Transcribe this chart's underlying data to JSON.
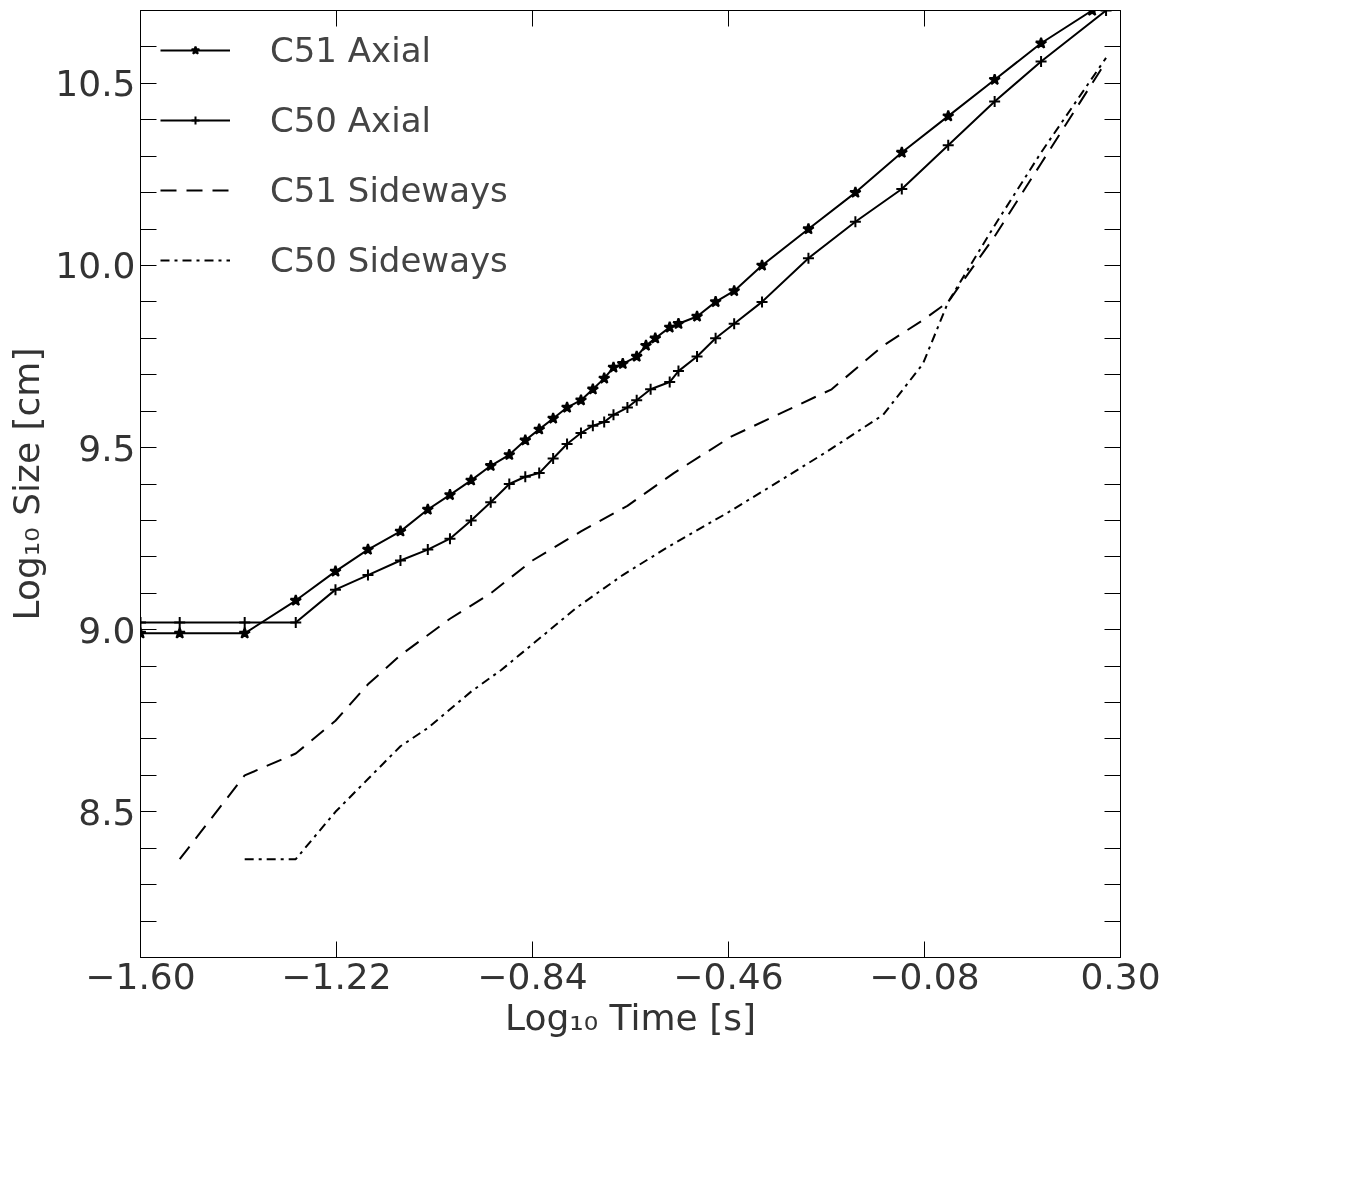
{
  "chart_data": {
    "type": "line",
    "xlabel": "Log₁₀ Time [s]",
    "ylabel": "Log₁₀ Size [cm]",
    "xlim": [
      -1.6,
      0.3
    ],
    "ylim": [
      8.1,
      10.7
    ],
    "xticks": [
      {
        "value": -1.6,
        "label": "−1.60"
      },
      {
        "value": -1.22,
        "label": "−1.22"
      },
      {
        "value": -0.84,
        "label": "−0.84"
      },
      {
        "value": -0.46,
        "label": "−0.46"
      },
      {
        "value": -0.08,
        "label": "−0.08"
      },
      {
        "value": 0.3,
        "label": "0.30"
      }
    ],
    "yticks": [
      {
        "value": 8.2,
        "label": null
      },
      {
        "value": 8.3,
        "label": null
      },
      {
        "value": 8.4,
        "label": null
      },
      8.5,
      {
        "value": 8.6,
        "label": null
      },
      {
        "value": 8.7,
        "label": null
      },
      {
        "value": 8.8,
        "label": null
      },
      {
        "value": 8.9,
        "label": null
      },
      {
        "value": 9.0,
        "label": "9.0"
      },
      {
        "value": 9.1,
        "label": null
      },
      {
        "value": 9.2,
        "label": null
      },
      {
        "value": 9.3,
        "label": null
      },
      {
        "value": 9.4,
        "label": null
      },
      9.5,
      {
        "value": 9.6,
        "label": null
      },
      {
        "value": 9.7,
        "label": null
      },
      {
        "value": 9.8,
        "label": null
      },
      {
        "value": 9.9,
        "label": null
      },
      {
        "value": 10.0,
        "label": "10.0"
      },
      {
        "value": 10.1,
        "label": null
      },
      {
        "value": 10.2,
        "label": null
      },
      {
        "value": 10.3,
        "label": null
      },
      {
        "value": 10.4,
        "label": null
      },
      10.5,
      {
        "value": 10.6,
        "label": null
      }
    ],
    "grid": false,
    "legend": "top left",
    "series": [
      {
        "name": "C51 Axial",
        "color": "#000000",
        "marker": "star",
        "line_style": "solid",
        "x": [
          -1.6,
          -1.524,
          -1.398,
          -1.299,
          -1.222,
          -1.159,
          -1.096,
          -1.043,
          -1.0,
          -0.959,
          -0.921,
          -0.885,
          -0.854,
          -0.827,
          -0.8,
          -0.773,
          -0.746,
          -0.723,
          -0.701,
          -0.683,
          -0.665,
          -0.638,
          -0.62,
          -0.602,
          -0.574,
          -0.557,
          -0.521,
          -0.485,
          -0.449,
          -0.395,
          -0.305,
          -0.214,
          -0.124,
          -0.034,
          0.056,
          0.146,
          0.245
        ],
        "values": [
          8.99,
          8.99,
          8.99,
          9.08,
          9.16,
          9.22,
          9.27,
          9.33,
          9.37,
          9.41,
          9.45,
          9.48,
          9.52,
          9.55,
          9.58,
          9.61,
          9.63,
          9.66,
          9.69,
          9.72,
          9.73,
          9.75,
          9.78,
          9.8,
          9.83,
          9.84,
          9.86,
          9.9,
          9.93,
          10.0,
          10.1,
          10.2,
          10.31,
          10.41,
          10.51,
          10.61,
          10.7
        ]
      },
      {
        "name": "C50 Axial",
        "color": "#000000",
        "marker": "cross",
        "line_style": "solid",
        "x": [
          -1.6,
          -1.524,
          -1.398,
          -1.299,
          -1.222,
          -1.159,
          -1.096,
          -1.043,
          -1.0,
          -0.959,
          -0.921,
          -0.885,
          -0.854,
          -0.827,
          -0.8,
          -0.773,
          -0.746,
          -0.723,
          -0.701,
          -0.683,
          -0.656,
          -0.638,
          -0.611,
          -0.574,
          -0.557,
          -0.521,
          -0.485,
          -0.449,
          -0.395,
          -0.305,
          -0.214,
          -0.124,
          -0.034,
          0.056,
          0.146,
          0.272
        ],
        "values": [
          9.02,
          9.02,
          9.02,
          9.02,
          9.11,
          9.15,
          9.19,
          9.22,
          9.25,
          9.3,
          9.35,
          9.4,
          9.42,
          9.43,
          9.47,
          9.51,
          9.54,
          9.56,
          9.57,
          9.59,
          9.61,
          9.63,
          9.66,
          9.68,
          9.71,
          9.75,
          9.8,
          9.84,
          9.9,
          10.02,
          10.12,
          10.21,
          10.33,
          10.45,
          10.56,
          10.7
        ]
      },
      {
        "name": "C51 Sideways",
        "color": "#000000",
        "marker": "none",
        "line_style": "dashed",
        "x": [
          -1.524,
          -1.398,
          -1.299,
          -1.222,
          -1.159,
          -1.096,
          -1.0,
          -0.921,
          -0.84,
          -0.746,
          -0.656,
          -0.566,
          -0.455,
          -0.35,
          -0.26,
          -0.16,
          -0.083,
          -0.034,
          0.056,
          0.146,
          0.272
        ],
        "values": [
          8.37,
          8.6,
          8.66,
          8.75,
          8.85,
          8.93,
          9.03,
          9.1,
          9.19,
          9.27,
          9.34,
          9.43,
          9.53,
          9.6,
          9.66,
          9.78,
          9.85,
          9.9,
          10.08,
          10.28,
          10.56
        ]
      },
      {
        "name": "C50 Sideways",
        "color": "#000000",
        "marker": "none",
        "line_style": "dashdot",
        "x": [
          -1.398,
          -1.299,
          -1.222,
          -1.159,
          -1.096,
          -1.043,
          -0.959,
          -0.9,
          -0.84,
          -0.755,
          -0.665,
          -0.574,
          -0.463,
          -0.359,
          -0.268,
          -0.16,
          -0.083,
          -0.034,
          0.056,
          0.146,
          0.272
        ],
        "values": [
          8.37,
          8.37,
          8.5,
          8.59,
          8.68,
          8.73,
          8.83,
          8.89,
          8.96,
          9.06,
          9.15,
          9.23,
          9.32,
          9.41,
          9.49,
          9.59,
          9.73,
          9.9,
          10.11,
          10.31,
          10.57
        ]
      }
    ]
  }
}
